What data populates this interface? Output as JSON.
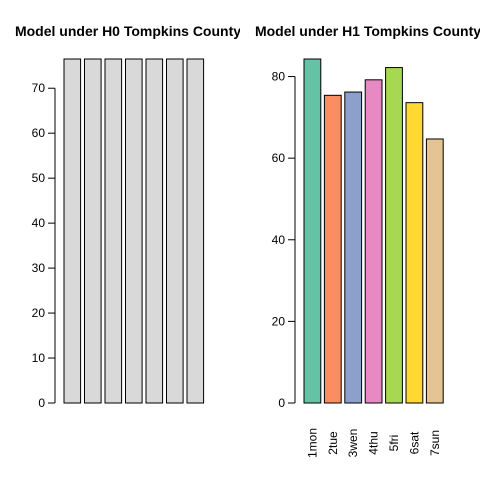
{
  "chart_data": [
    {
      "type": "bar",
      "title": "Model under H0 Tompkins County",
      "categories": [
        "",
        "",
        "",
        "",
        "",
        "",
        ""
      ],
      "values": [
        76.5,
        76.5,
        76.5,
        76.5,
        76.5,
        76.5,
        76.5
      ],
      "colors": [
        "#d9d9d9",
        "#d9d9d9",
        "#d9d9d9",
        "#d9d9d9",
        "#d9d9d9",
        "#d9d9d9",
        "#d9d9d9"
      ],
      "yticks": [
        0,
        10,
        20,
        30,
        40,
        50,
        60,
        70
      ],
      "ytick_labels": [
        "0",
        "10",
        "20",
        "30",
        "40",
        "50",
        "60",
        "70"
      ],
      "ylim": [
        0,
        76.5
      ],
      "xlabel": "",
      "ylabel": "",
      "grid": false,
      "legend": "none"
    },
    {
      "type": "bar",
      "title": "Model under H1 Tompkins County",
      "categories": [
        "1mon",
        "2tue",
        "3wen",
        "4thu",
        "5fri",
        "6sat",
        "7sun"
      ],
      "values": [
        84.3,
        75.4,
        76.2,
        79.2,
        82.2,
        73.6,
        64.7
      ],
      "colors": [
        "#66c2a5",
        "#fc8d62",
        "#8da0cb",
        "#e78ac3",
        "#a6d854",
        "#ffd92f",
        "#e5c494"
      ],
      "yticks": [
        0,
        20,
        40,
        60,
        80
      ],
      "ytick_labels": [
        "0",
        "20",
        "40",
        "60",
        "80"
      ],
      "ylim": [
        0,
        84.3
      ],
      "xlabel": "",
      "ylabel": "",
      "grid": false,
      "legend": "none"
    }
  ]
}
